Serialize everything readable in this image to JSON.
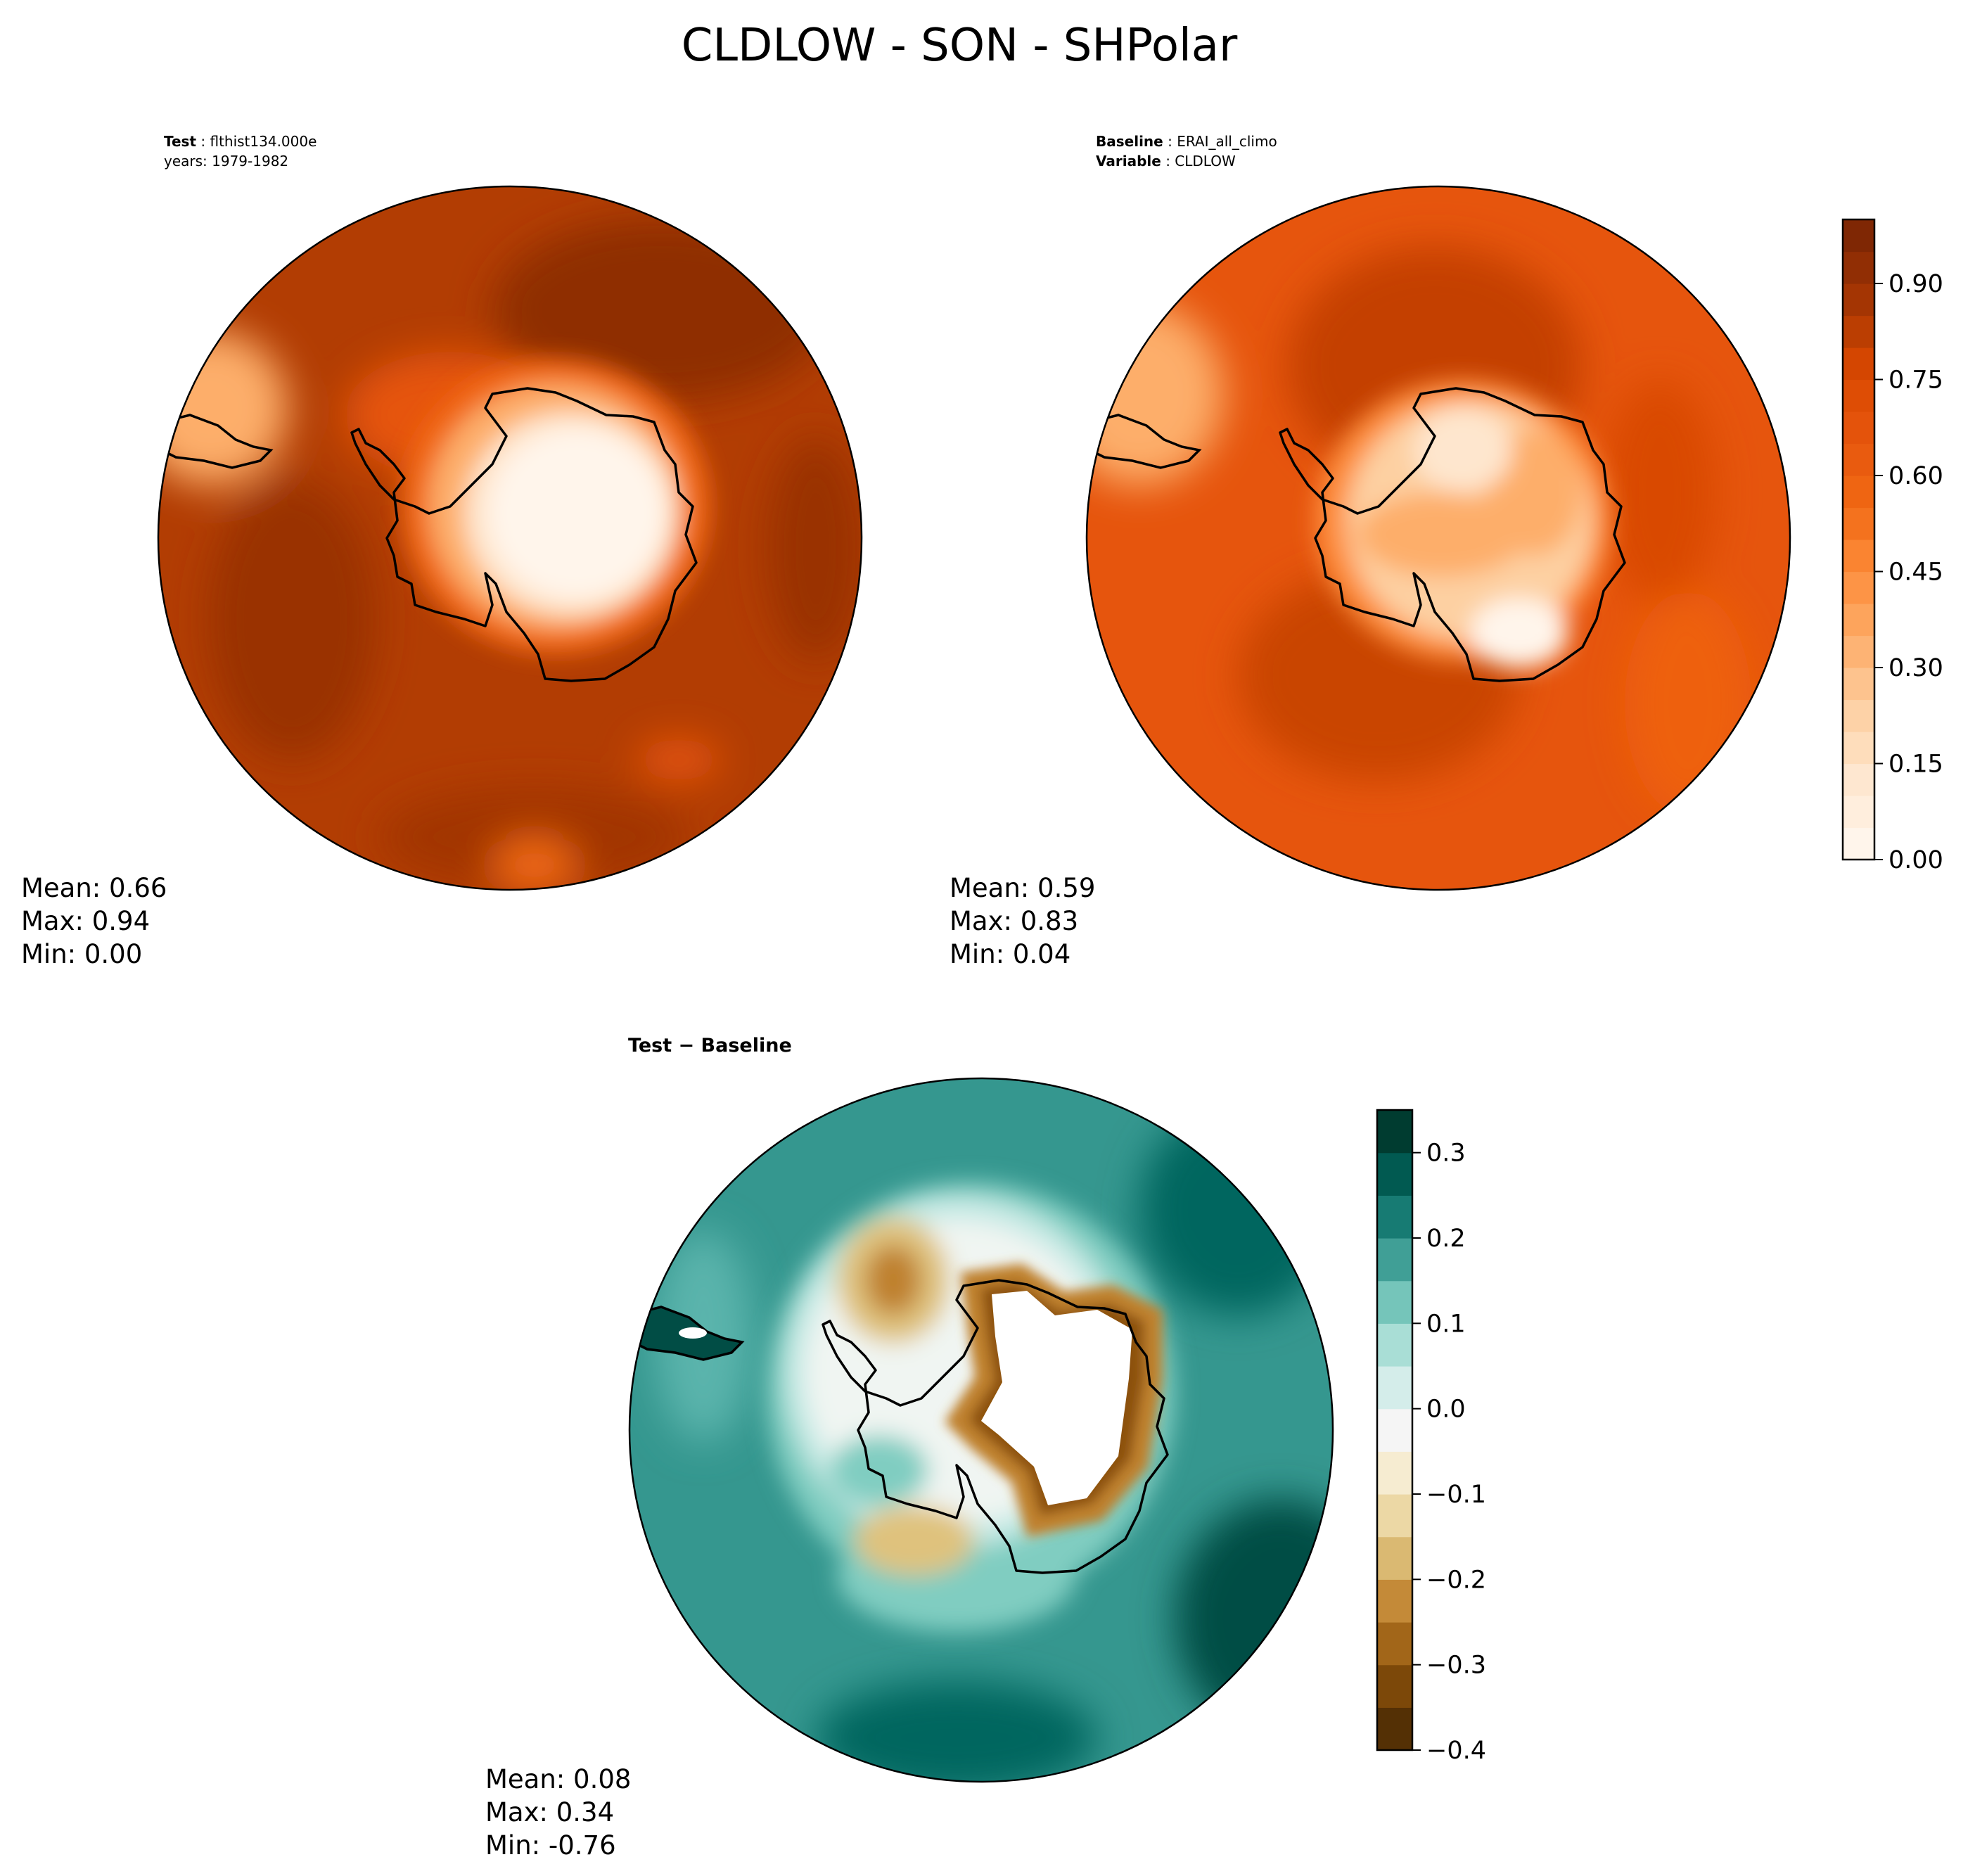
{
  "title": "CLDLOW - SON - SHPolar",
  "panels": {
    "test": {
      "label_key": "Test",
      "label_value": "flthist134.000e",
      "years_line": "years: 1979-1982",
      "mean": "Mean:  0.66",
      "max": "Max:  0.94",
      "min": "Min:  0.00"
    },
    "baseline": {
      "label_key": "Baseline",
      "label_value": "ERAI_all_climo",
      "variable_key": "Variable",
      "variable_value": "CLDLOW",
      "mean": "Mean:  0.59",
      "max": "Max:  0.83",
      "min": "Min:  0.04"
    },
    "diff": {
      "title": "Test − Baseline",
      "mean": "Mean:  0.08",
      "max": "Max:  0.34",
      "min": "Min: -0.76"
    }
  },
  "colors": {
    "oranges": [
      "#fff5eb",
      "#fee6ce",
      "#fdd0a2",
      "#fdae6b",
      "#fd8d3c",
      "#f16913",
      "#e6550d",
      "#d94801",
      "#a63603",
      "#7f2704"
    ],
    "brbg": [
      "#543005",
      "#8c510a",
      "#bf812d",
      "#dfc27d",
      "#f6e8c3",
      "#f5f5f5",
      "#c7eae5",
      "#80cdc1",
      "#35978f",
      "#01665e",
      "#003c30"
    ]
  },
  "chart_data": [
    {
      "type": "heatmap",
      "name": "test-map",
      "projection": "south-polar-stereographic",
      "colormap": "Oranges",
      "vmin": 0.0,
      "vmax": 1.0,
      "stats": {
        "mean": 0.66,
        "max": 0.94,
        "min": 0.0
      }
    },
    {
      "type": "heatmap",
      "name": "baseline-map",
      "projection": "south-polar-stereographic",
      "colormap": "Oranges",
      "vmin": 0.0,
      "vmax": 1.0,
      "stats": {
        "mean": 0.59,
        "max": 0.83,
        "min": 0.04
      }
    },
    {
      "type": "heatmap",
      "name": "difference-map",
      "projection": "south-polar-stereographic",
      "colormap": "BrBG",
      "vmin": -0.4,
      "vmax": 0.35,
      "stats": {
        "mean": 0.08,
        "max": 0.34,
        "min": -0.76
      }
    }
  ],
  "colorbars": {
    "main": {
      "vmin": 0.0,
      "vmax": 1.0,
      "levels": 20,
      "ticks": [
        0.0,
        0.15,
        0.3,
        0.45,
        0.6,
        0.75,
        0.9
      ],
      "tick_labels": [
        "0.00",
        "0.15",
        "0.30",
        "0.45",
        "0.60",
        "0.75",
        "0.90"
      ]
    },
    "diff": {
      "vmin": -0.4,
      "vmax": 0.35,
      "levels": 15,
      "ticks": [
        -0.4,
        -0.3,
        -0.2,
        -0.1,
        0.0,
        0.1,
        0.2,
        0.3
      ],
      "tick_labels": [
        "−0.4",
        "−0.3",
        "−0.2",
        "−0.1",
        "0.0",
        "0.1",
        "0.2",
        "0.3"
      ]
    }
  }
}
